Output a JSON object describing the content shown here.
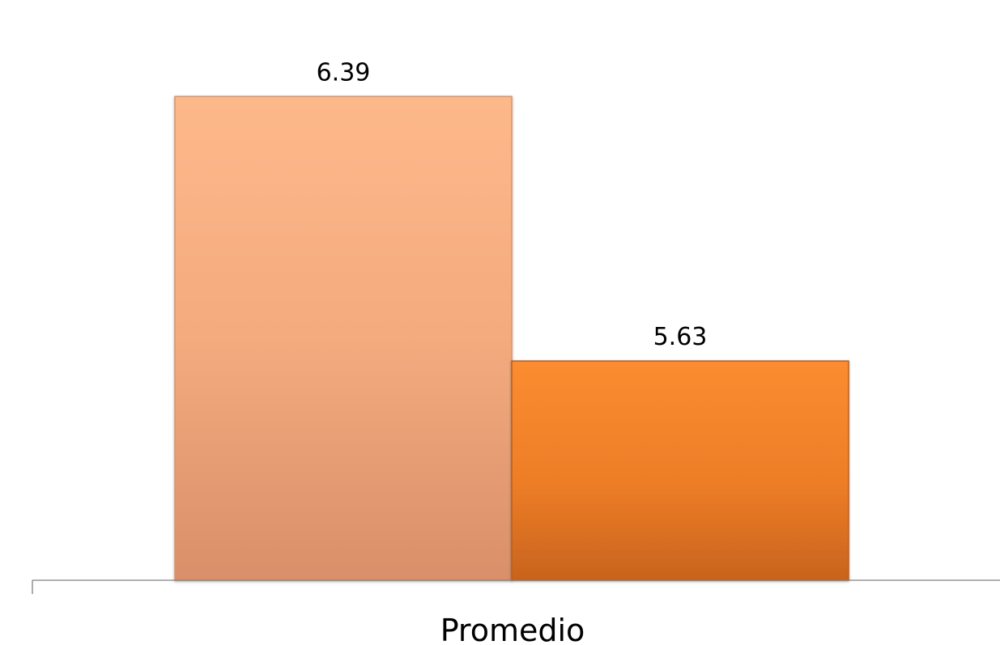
{
  "chart_data": {
    "type": "bar",
    "categories": [
      "Promedio"
    ],
    "series": [
      {
        "values": [
          6.39
        ],
        "color": "#FBB386"
      },
      {
        "values": [
          5.63
        ],
        "color": "#F98B2C"
      }
    ],
    "data_labels": [
      "6.39",
      "5.63"
    ],
    "title": "",
    "xlabel": "",
    "ylabel": "",
    "ylim": [
      5.0,
      6.5
    ],
    "grid": false,
    "legend": "none"
  }
}
